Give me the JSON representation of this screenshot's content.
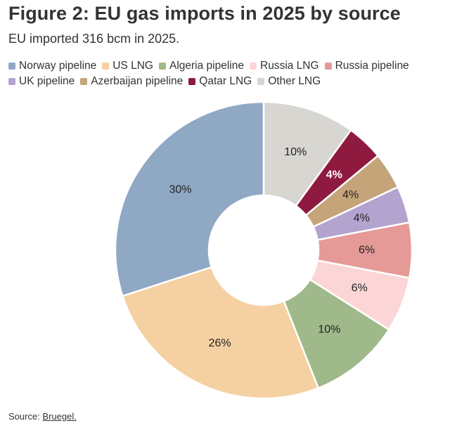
{
  "title": "Figure 2: EU gas imports in 2025 by source",
  "subtitle": "EU imported 316 bcm in 2025.",
  "source": {
    "prefix": "Source: ",
    "link_text": "Bruegel."
  },
  "chart_data": {
    "type": "pie",
    "donut": true,
    "legend_position": "top",
    "slices": [
      {
        "name": "Other LNG",
        "value": 10,
        "label": "10%",
        "color": "#d8d6d1",
        "text_color": "#222222",
        "bold": false
      },
      {
        "name": "Qatar LNG",
        "value": 4,
        "label": "4%",
        "color": "#8e1a40",
        "text_color": "#ffffff",
        "bold": true
      },
      {
        "name": "Azerbaijan pipeline",
        "value": 4,
        "label": "4%",
        "color": "#c6a47a",
        "text_color": "#222222",
        "bold": false
      },
      {
        "name": "UK pipeline",
        "value": 4,
        "label": "4%",
        "color": "#b3a3cf",
        "text_color": "#222222",
        "bold": false
      },
      {
        "name": "Russia pipeline",
        "value": 6,
        "label": "6%",
        "color": "#e59a98",
        "text_color": "#222222",
        "bold": false
      },
      {
        "name": "Russia LNG",
        "value": 6,
        "label": "6%",
        "color": "#fcd6d6",
        "text_color": "#222222",
        "bold": false
      },
      {
        "name": "Algeria pipeline",
        "value": 10,
        "label": "10%",
        "color": "#9fb98a",
        "text_color": "#222222",
        "bold": false
      },
      {
        "name": "US LNG",
        "value": 26,
        "label": "26%",
        "color": "#f5d0a2",
        "text_color": "#222222",
        "bold": false
      },
      {
        "name": "Norway pipeline",
        "value": 30,
        "label": "30%",
        "color": "#8fa9c4",
        "text_color": "#222222",
        "bold": false
      }
    ],
    "legend": [
      {
        "name": "Norway pipeline",
        "color": "#8fa9c4"
      },
      {
        "name": "US LNG",
        "color": "#f5d0a2"
      },
      {
        "name": "Algeria pipeline",
        "color": "#9fb98a"
      },
      {
        "name": "Russia LNG",
        "color": "#fcd6d6"
      },
      {
        "name": "Russia pipeline",
        "color": "#e59a98"
      },
      {
        "name": "UK pipeline",
        "color": "#b3a3cf"
      },
      {
        "name": "Azerbaijan pipeline",
        "color": "#c6a47a"
      },
      {
        "name": "Qatar LNG",
        "color": "#8e1a40"
      },
      {
        "name": "Other LNG",
        "color": "#d8d6d1"
      }
    ]
  }
}
